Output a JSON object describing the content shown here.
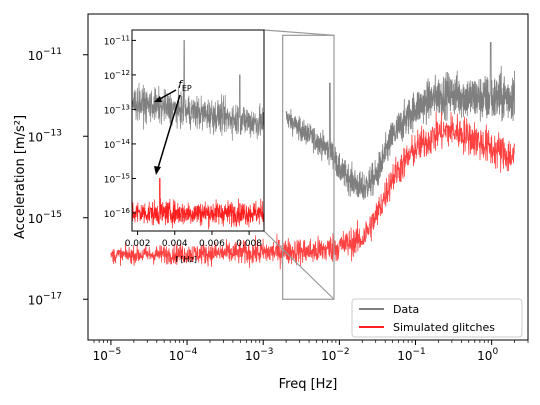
{
  "chart_data": [
    {
      "type": "line",
      "role": "main",
      "xlabel": "Freq [Hz]",
      "ylabel": "Acceleration [m/s²]",
      "x_scale": "log",
      "y_scale": "log",
      "xlim": [
        5e-06,
        3
      ],
      "ylim": [
        1e-18,
        1e-10
      ],
      "x_ticks": [
        {
          "value": 1e-05,
          "base": "10",
          "exp": "−5"
        },
        {
          "value": 0.0001,
          "base": "10",
          "exp": "−4"
        },
        {
          "value": 0.001,
          "base": "10",
          "exp": "−3"
        },
        {
          "value": 0.01,
          "base": "10",
          "exp": "−2"
        },
        {
          "value": 0.1,
          "base": "10",
          "exp": "−1"
        },
        {
          "value": 1,
          "base": "10",
          "exp": "0"
        }
      ],
      "y_ticks": [
        {
          "value": 1e-11,
          "base": "10",
          "exp": "−11"
        },
        {
          "value": 1e-13,
          "base": "10",
          "exp": "−13"
        },
        {
          "value": 1e-15,
          "base": "10",
          "exp": "−15"
        },
        {
          "value": 1e-17,
          "base": "10",
          "exp": "−17"
        }
      ],
      "grid": false,
      "legend_position": "lower-right",
      "series": [
        {
          "name": "Data",
          "color": "#7f7f7f",
          "points": [
            [
              0.002,
              3e-13
            ],
            [
              0.003,
              1.5e-13
            ],
            [
              0.005,
              8e-14
            ],
            [
              0.008,
              4e-14
            ],
            [
              0.01,
              1.5e-14
            ],
            [
              0.02,
              5e-15
            ],
            [
              0.03,
              1e-14
            ],
            [
              0.05,
              1e-13
            ],
            [
              0.1,
              5e-13
            ],
            [
              0.2,
              1e-12
            ],
            [
              0.3,
              1.1e-12
            ],
            [
              0.5,
              9e-13
            ],
            [
              1.0,
              8e-13
            ],
            [
              2.0,
              1e-12
            ]
          ],
          "peaks": [
            [
              0.0075,
              2e-12
            ],
            [
              0.97,
              2e-11
            ]
          ]
        },
        {
          "name": "Simulated glitches",
          "color": "#ff2020",
          "points": [
            [
              1e-05,
              1.2e-16
            ],
            [
              0.0001,
              1.3e-16
            ],
            [
              0.001,
              1.4e-16
            ],
            [
              0.002,
              1.5e-16
            ],
            [
              0.005,
              1.5e-16
            ],
            [
              0.01,
              2e-16
            ],
            [
              0.02,
              3e-16
            ],
            [
              0.03,
              1e-15
            ],
            [
              0.05,
              1e-14
            ],
            [
              0.1,
              5e-14
            ],
            [
              0.2,
              1.2e-13
            ],
            [
              0.3,
              1.4e-13
            ],
            [
              0.5,
              1e-13
            ],
            [
              1.0,
              5e-14
            ],
            [
              2.0,
              3e-14
            ]
          ]
        }
      ]
    },
    {
      "type": "line",
      "role": "inset",
      "xlabel": "f [Hz]",
      "x_scale": "linear",
      "y_scale": "log",
      "xlim": [
        0.0017,
        0.0088
      ],
      "ylim": [
        3e-17,
        2e-11
      ],
      "x_ticks": [
        {
          "value": 0.002,
          "label": "0.002"
        },
        {
          "value": 0.004,
          "label": "0.004"
        },
        {
          "value": 0.006,
          "label": "0.006"
        },
        {
          "value": 0.008,
          "label": "0.008"
        }
      ],
      "y_ticks": [
        {
          "value": 1e-11,
          "base": "10",
          "exp": "−11"
        },
        {
          "value": 1e-12,
          "base": "10",
          "exp": "−12"
        },
        {
          "value": 1e-13,
          "base": "10",
          "exp": "−13"
        },
        {
          "value": 1e-14,
          "base": "10",
          "exp": "−14"
        },
        {
          "value": 1e-15,
          "base": "10",
          "exp": "−15"
        },
        {
          "value": 1e-16,
          "base": "10",
          "exp": "−16"
        }
      ],
      "annotation": {
        "base": "f",
        "sub": "EP"
      },
      "series": [
        {
          "name": "Data",
          "color": "#7f7f7f",
          "level": 1.5e-13,
          "peaks": [
            [
              0.0045,
              1e-11
            ],
            [
              0.0075,
              1e-12
            ]
          ]
        },
        {
          "name": "Simulated glitches",
          "color": "#ff2020",
          "level": 1e-16,
          "peaks": [
            [
              0.0032,
              1e-15
            ]
          ]
        }
      ],
      "zoom_region": {
        "xlim": [
          0.0018,
          0.0085
        ],
        "ylim": [
          1e-17,
          3e-11
        ]
      }
    }
  ]
}
